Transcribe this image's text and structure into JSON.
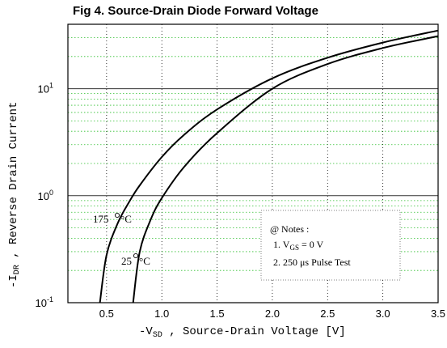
{
  "chart_data": {
    "type": "line",
    "title": "Fig 4.  Source-Drain Diode Forward Voltage",
    "xlabel": {
      "prefix": "-V",
      "sub": "SD",
      "rest": " , Source-Drain Voltage  [V]"
    },
    "ylabel": {
      "prefix": "-I",
      "sub": "DR",
      "rest": " , Reverse Drain Current"
    },
    "xlim": [
      0.15,
      3.5
    ],
    "ylim": [
      0.1,
      40
    ],
    "yscale": "log",
    "x_ticks": [
      "0.5",
      "1.0",
      "1.5",
      "2.0",
      "2.5",
      "3.0",
      "3.5"
    ],
    "y_ticks": [
      {
        "base": "10",
        "exp": "-1"
      },
      {
        "base": "10",
        "exp": "0"
      },
      {
        "base": "10",
        "exp": "1"
      }
    ],
    "grid": true,
    "series": [
      {
        "name": "175 °C",
        "label": {
          "num": "175",
          "unit": "°C"
        },
        "x": [
          0.44,
          0.5,
          0.6,
          0.7,
          0.8,
          1.0,
          1.2,
          1.5,
          2.0,
          2.5,
          3.0,
          3.5
        ],
        "y": [
          0.1,
          0.28,
          0.55,
          0.86,
          1.25,
          2.3,
          3.7,
          6.4,
          12.5,
          19.5,
          27,
          35
        ]
      },
      {
        "name": "25 °C",
        "label": {
          "num": "25",
          "unit": "°C"
        },
        "x": [
          0.74,
          0.8,
          0.9,
          1.0,
          1.2,
          1.5,
          2.0,
          2.5,
          3.0,
          3.5
        ],
        "y": [
          0.1,
          0.3,
          0.6,
          0.95,
          1.85,
          3.85,
          10,
          17,
          24,
          31
        ]
      }
    ],
    "notes": {
      "header": "@ Notes :",
      "line1": {
        "prefix": "1. V",
        "sub": "GS",
        "rest": " = 0 V"
      },
      "line2": "2. 250 μs Pulse Test"
    }
  }
}
